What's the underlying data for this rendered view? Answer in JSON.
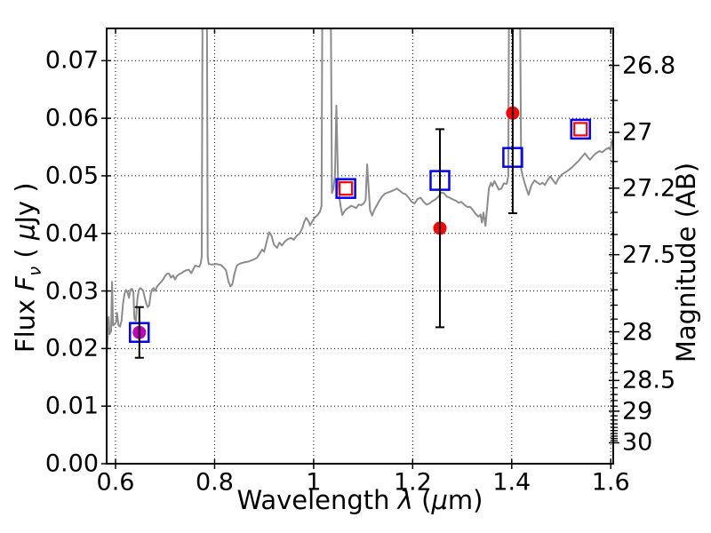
{
  "figure": {
    "background": "#ffffff",
    "xlabel_parts": {
      "pre": "Wavelength ",
      "lambda": "λ",
      "mid": " (",
      "mu": "μ",
      "post": "m)"
    },
    "ylabel_left_parts": {
      "pre": "Flux ",
      "F": "F",
      "nu": "ν",
      "mid": " ( ",
      "mu": "μ",
      "post": "Jy )"
    },
    "ylabel_right": "Magnitude (AB)"
  },
  "chart_data": {
    "type": "line",
    "title": "",
    "xlabel": "Wavelength λ (μm)",
    "ylabel_left": "Flux Fν (μJy)",
    "ylabel_right": "Magnitude (AB)",
    "xlim": [
      0.582,
      1.605
    ],
    "ylim_flux": [
      0,
      0.0756
    ],
    "grid": true,
    "grid_style": "dotted",
    "x_ticks": {
      "values": [
        0.6,
        0.8,
        1.0,
        1.2,
        1.4,
        1.6
      ],
      "labels": [
        "0.6",
        "0.8",
        "1",
        "1.2",
        "1.4",
        "1.6"
      ]
    },
    "y_ticks_flux": {
      "values": [
        0,
        0.01,
        0.02,
        0.03,
        0.04,
        0.05,
        0.06,
        0.07
      ],
      "labels": [
        "0.00",
        "0.01",
        "0.02",
        "0.03",
        "0.04",
        "0.05",
        "0.06",
        "0.07"
      ]
    },
    "mag_axis": {
      "ab_zeropoint_1ujy": 23.9,
      "major": {
        "values": [
          26.8,
          27.0,
          27.2,
          27.5,
          28.0,
          28.5,
          29.0,
          30.0
        ],
        "labels": [
          "26.8",
          "27",
          "27.2",
          "27.5",
          "28",
          "28.5",
          "29",
          "30"
        ]
      },
      "minor_step": 0.1,
      "minor_min": 26.8,
      "minor_max": 30.0
    },
    "spectrum": {
      "name": "galaxy-spectrum",
      "color": "#8c8c8c",
      "linewidth": 2,
      "points": [
        [
          0.582,
          0.0185
        ],
        [
          0.584,
          0.0215
        ],
        [
          0.586,
          0.0255
        ],
        [
          0.588,
          0.0225
        ],
        [
          0.591,
          0.023
        ],
        [
          0.593,
          0.0316
        ],
        [
          0.595,
          0.024
        ],
        [
          0.598,
          0.0242
        ],
        [
          0.601,
          0.0246
        ],
        [
          0.603,
          0.0262
        ],
        [
          0.606,
          0.024
        ],
        [
          0.609,
          0.0238
        ],
        [
          0.612,
          0.0248
        ],
        [
          0.615,
          0.0278
        ],
        [
          0.618,
          0.0295
        ],
        [
          0.621,
          0.0302
        ],
        [
          0.624,
          0.0298
        ],
        [
          0.627,
          0.0288
        ],
        [
          0.63,
          0.0302
        ],
        [
          0.633,
          0.0304
        ],
        [
          0.636,
          0.0298
        ],
        [
          0.638,
          0.0252
        ],
        [
          0.641,
          0.0248
        ],
        [
          0.644,
          0.0285
        ],
        [
          0.647,
          0.0302
        ],
        [
          0.65,
          0.0305
        ],
        [
          0.653,
          0.0303
        ],
        [
          0.656,
          0.03
        ],
        [
          0.659,
          0.0288
        ],
        [
          0.662,
          0.0278
        ],
        [
          0.665,
          0.0272
        ],
        [
          0.668,
          0.0275
        ],
        [
          0.671,
          0.0295
        ],
        [
          0.674,
          0.0303
        ],
        [
          0.677,
          0.0305
        ],
        [
          0.68,
          0.03
        ],
        [
          0.684,
          0.0308
        ],
        [
          0.688,
          0.0312
        ],
        [
          0.692,
          0.0316
        ],
        [
          0.696,
          0.032
        ],
        [
          0.7,
          0.0326
        ],
        [
          0.704,
          0.033
        ],
        [
          0.708,
          0.033
        ],
        [
          0.712,
          0.0323
        ],
        [
          0.716,
          0.0327
        ],
        [
          0.72,
          0.032
        ],
        [
          0.724,
          0.0326
        ],
        [
          0.728,
          0.0329
        ],
        [
          0.733,
          0.0331
        ],
        [
          0.738,
          0.0334
        ],
        [
          0.743,
          0.0336
        ],
        [
          0.748,
          0.0337
        ],
        [
          0.753,
          0.0331
        ],
        [
          0.757,
          0.0338
        ],
        [
          0.761,
          0.0344
        ],
        [
          0.765,
          0.0343
        ],
        [
          0.769,
          0.0342
        ],
        [
          0.772,
          0.0348
        ],
        [
          0.774,
          0.036
        ],
        [
          0.776,
          0.09
        ],
        [
          0.784,
          0.09
        ],
        [
          0.786,
          0.036
        ],
        [
          0.788,
          0.0347
        ],
        [
          0.793,
          0.0346
        ],
        [
          0.798,
          0.0346
        ],
        [
          0.803,
          0.0347
        ],
        [
          0.808,
          0.0346
        ],
        [
          0.813,
          0.0345
        ],
        [
          0.818,
          0.0341
        ],
        [
          0.823,
          0.0336
        ],
        [
          0.828,
          0.0316
        ],
        [
          0.832,
          0.0308
        ],
        [
          0.836,
          0.0312
        ],
        [
          0.84,
          0.033
        ],
        [
          0.845,
          0.0344
        ],
        [
          0.85,
          0.0347
        ],
        [
          0.856,
          0.0349
        ],
        [
          0.862,
          0.035
        ],
        [
          0.868,
          0.0351
        ],
        [
          0.874,
          0.0353
        ],
        [
          0.88,
          0.0355
        ],
        [
          0.886,
          0.0358
        ],
        [
          0.891,
          0.0365
        ],
        [
          0.896,
          0.0372
        ],
        [
          0.9,
          0.0368
        ],
        [
          0.905,
          0.0385
        ],
        [
          0.91,
          0.0402
        ],
        [
          0.915,
          0.0396
        ],
        [
          0.92,
          0.038
        ],
        [
          0.926,
          0.0375
        ],
        [
          0.931,
          0.0384
        ],
        [
          0.936,
          0.0379
        ],
        [
          0.942,
          0.0386
        ],
        [
          0.948,
          0.039
        ],
        [
          0.954,
          0.0392
        ],
        [
          0.96,
          0.0389
        ],
        [
          0.966,
          0.0396
        ],
        [
          0.972,
          0.04
        ],
        [
          0.977,
          0.0409
        ],
        [
          0.981,
          0.042
        ],
        [
          0.985,
          0.0427
        ],
        [
          0.989,
          0.0422
        ],
        [
          0.993,
          0.0414
        ],
        [
          0.998,
          0.0422
        ],
        [
          1.003,
          0.0428
        ],
        [
          1.008,
          0.0432
        ],
        [
          1.013,
          0.0438
        ],
        [
          1.016,
          0.0448
        ],
        [
          1.018,
          0.09
        ],
        [
          1.034,
          0.09
        ],
        [
          1.037,
          0.047
        ],
        [
          1.04,
          0.0478
        ],
        [
          1.043,
          0.05
        ],
        [
          1.046,
          0.0622
        ],
        [
          1.049,
          0.05
        ],
        [
          1.052,
          0.0462
        ],
        [
          1.055,
          0.0445
        ],
        [
          1.058,
          0.0432
        ],
        [
          1.062,
          0.0438
        ],
        [
          1.066,
          0.0442
        ],
        [
          1.071,
          0.0445
        ],
        [
          1.076,
          0.0448
        ],
        [
          1.081,
          0.0446
        ],
        [
          1.086,
          0.0444
        ],
        [
          1.091,
          0.045
        ],
        [
          1.096,
          0.0449
        ],
        [
          1.101,
          0.0452
        ],
        [
          1.105,
          0.0458
        ],
        [
          1.108,
          0.052
        ],
        [
          1.111,
          0.0478
        ],
        [
          1.114,
          0.044
        ],
        [
          1.118,
          0.0431
        ],
        [
          1.122,
          0.044
        ],
        [
          1.127,
          0.0448
        ],
        [
          1.132,
          0.0456
        ],
        [
          1.138,
          0.0464
        ],
        [
          1.144,
          0.0469
        ],
        [
          1.15,
          0.0471
        ],
        [
          1.156,
          0.0473
        ],
        [
          1.162,
          0.0475
        ],
        [
          1.168,
          0.0478
        ],
        [
          1.174,
          0.0474
        ],
        [
          1.18,
          0.047
        ],
        [
          1.186,
          0.0468
        ],
        [
          1.192,
          0.0462
        ],
        [
          1.198,
          0.0455
        ],
        [
          1.204,
          0.0452
        ],
        [
          1.21,
          0.046
        ],
        [
          1.216,
          0.0462
        ],
        [
          1.222,
          0.0455
        ],
        [
          1.228,
          0.045
        ],
        [
          1.234,
          0.0452
        ],
        [
          1.24,
          0.0456
        ],
        [
          1.246,
          0.0459
        ],
        [
          1.252,
          0.0464
        ],
        [
          1.258,
          0.0471
        ],
        [
          1.263,
          0.047
        ],
        [
          1.269,
          0.0464
        ],
        [
          1.275,
          0.0462
        ],
        [
          1.281,
          0.0459
        ],
        [
          1.287,
          0.0457
        ],
        [
          1.293,
          0.0453
        ],
        [
          1.298,
          0.0455
        ],
        [
          1.304,
          0.045
        ],
        [
          1.31,
          0.0446
        ],
        [
          1.316,
          0.0446
        ],
        [
          1.322,
          0.044
        ],
        [
          1.328,
          0.0433
        ],
        [
          1.333,
          0.0429
        ],
        [
          1.337,
          0.0433
        ],
        [
          1.34,
          0.0419
        ],
        [
          1.343,
          0.0436
        ],
        [
          1.347,
          0.0413
        ],
        [
          1.35,
          0.0441
        ],
        [
          1.354,
          0.0478
        ],
        [
          1.358,
          0.0488
        ],
        [
          1.361,
          0.0482
        ],
        [
          1.365,
          0.0491
        ],
        [
          1.368,
          0.0486
        ],
        [
          1.374,
          0.0476
        ],
        [
          1.379,
          0.0478
        ],
        [
          1.384,
          0.0487
        ],
        [
          1.39,
          0.0486
        ],
        [
          1.393,
          0.05
        ],
        [
          1.395,
          0.09
        ],
        [
          1.416,
          0.09
        ],
        [
          1.419,
          0.0512
        ],
        [
          1.423,
          0.0497
        ],
        [
          1.428,
          0.0482
        ],
        [
          1.434,
          0.0467
        ],
        [
          1.44,
          0.0484
        ],
        [
          1.446,
          0.0492
        ],
        [
          1.452,
          0.0488
        ],
        [
          1.457,
          0.0485
        ],
        [
          1.462,
          0.0488
        ],
        [
          1.467,
          0.0484
        ],
        [
          1.472,
          0.0492
        ],
        [
          1.478,
          0.0499
        ],
        [
          1.483,
          0.0493
        ],
        [
          1.489,
          0.0486
        ],
        [
          1.494,
          0.0495
        ],
        [
          1.501,
          0.0502
        ],
        [
          1.508,
          0.0506
        ],
        [
          1.515,
          0.051
        ],
        [
          1.522,
          0.0515
        ],
        [
          1.529,
          0.0521
        ],
        [
          1.536,
          0.0527
        ],
        [
          1.542,
          0.0533
        ],
        [
          1.548,
          0.0539
        ],
        [
          1.553,
          0.0533
        ],
        [
          1.558,
          0.0528
        ],
        [
          1.564,
          0.0534
        ],
        [
          1.57,
          0.0539
        ],
        [
          1.577,
          0.0543
        ],
        [
          1.583,
          0.0541
        ],
        [
          1.59,
          0.0546
        ],
        [
          1.596,
          0.0549
        ],
        [
          1.6,
          0.0545
        ],
        [
          1.602,
          0.056
        ],
        [
          1.605,
          0.0563
        ]
      ]
    },
    "photometry": {
      "blue_open_squares": {
        "color": "#0000ff",
        "size": 21,
        "linewidth": 2.5,
        "points": [
          [
            0.648,
            0.0228
          ],
          [
            1.065,
            0.0478
          ],
          [
            1.255,
            0.0492
          ],
          [
            1.402,
            0.0532
          ],
          [
            1.539,
            0.0581
          ]
        ]
      },
      "red_open_squares": {
        "color": "#ff0000",
        "size": 14,
        "linewidth": 2.2,
        "points": [
          [
            1.065,
            0.0478
          ],
          [
            1.539,
            0.0581
          ]
        ]
      },
      "filled_circles": {
        "radius": 7.5,
        "errorbar_color": "#000000",
        "points": [
          {
            "x": 0.648,
            "flux": 0.0228,
            "err_hi": 0.0044,
            "err_lo": 0.0044,
            "color": "#bf00bf"
          },
          {
            "x": 1.255,
            "flux": 0.0409,
            "err_hi": 0.0172,
            "err_lo": 0.0172,
            "color": "#ff0000"
          },
          {
            "x": 1.402,
            "flux": 0.0609,
            "err_hi": 0.025,
            "err_lo": 0.0174,
            "color": "#ff0000"
          }
        ]
      }
    }
  }
}
